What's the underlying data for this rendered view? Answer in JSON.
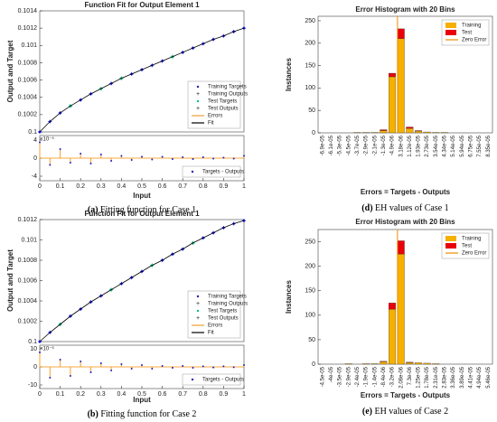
{
  "chart_data": [
    {
      "type": "line",
      "title": "Function Fit for Output Element 1",
      "ylabel": "Output and Target",
      "xlabel": "Input",
      "caption_label": "(a)",
      "caption": "Fitting function for Case 1",
      "x": [
        0,
        0.05,
        0.1,
        0.15,
        0.2,
        0.25,
        0.3,
        0.35,
        0.4,
        0.45,
        0.5,
        0.55,
        0.6,
        0.65,
        0.7,
        0.75,
        0.8,
        0.85,
        0.9,
        0.95,
        1
      ],
      "xlim": [
        0,
        1
      ],
      "xticks": [
        0,
        0.1,
        0.2,
        0.3,
        0.4,
        0.5,
        0.6,
        0.7,
        0.8,
        0.9,
        1
      ],
      "ylim": [
        0.1,
        0.1014
      ],
      "yticks": [
        0.1,
        0.1002,
        0.1004,
        0.1006,
        0.1008,
        0.101,
        0.1012,
        0.1014
      ],
      "legend": "lower right",
      "series": [
        {
          "name": "Training Targets",
          "color": "#1f1fb4",
          "marker": "dot",
          "values": [
            0.1,
            0.10012,
            0.10022,
            0.1003,
            0.10037,
            0.10044,
            0.1005,
            0.10056,
            0.10062,
            0.10067,
            0.10072,
            0.10077,
            0.10082,
            0.10087,
            0.10092,
            0.10097,
            0.10102,
            0.10107,
            0.10111,
            0.10116,
            0.1012
          ]
        },
        {
          "name": "Training Outputs",
          "color": "#0000ff",
          "marker": "plus",
          "values": [
            0.1,
            0.10012,
            0.10022,
            0.1003,
            0.10037,
            0.10044,
            0.1005,
            0.10056,
            0.10062,
            0.10067,
            0.10072,
            0.10077,
            0.10082,
            0.10087,
            0.10092,
            0.10097,
            0.10102,
            0.10107,
            0.10111,
            0.10116,
            0.1012
          ]
        },
        {
          "name": "Test Targets",
          "color": "#00c080",
          "marker": "dot",
          "values": [
            null,
            null,
            null,
            0.1003,
            null,
            null,
            0.1005,
            null,
            0.10062,
            null,
            null,
            null,
            null,
            0.10087,
            null,
            null,
            null,
            null,
            null,
            null,
            null
          ]
        },
        {
          "name": "Test Outputs",
          "color": "#00d070",
          "marker": "plus",
          "values": [
            null,
            null,
            null,
            0.1003,
            null,
            null,
            0.1005,
            null,
            0.10062,
            null,
            null,
            null,
            null,
            0.10087,
            null,
            null,
            null,
            null,
            null,
            null,
            null
          ]
        },
        {
          "name": "Errors",
          "color": "#f0a030"
        },
        {
          "name": "Fit",
          "color": "#000000",
          "marker": "line",
          "values": [
            0.1,
            0.10012,
            0.10022,
            0.1003,
            0.10037,
            0.10044,
            0.1005,
            0.10056,
            0.10062,
            0.10067,
            0.10072,
            0.10077,
            0.10082,
            0.10087,
            0.10092,
            0.10097,
            0.10102,
            0.10107,
            0.10111,
            0.10116,
            0.1012
          ]
        }
      ],
      "error_panel": {
        "ylabel": "Error",
        "exponent_label": "×10⁻⁵",
        "legend": "Targets - Outputs",
        "color": "#f0a030",
        "ylim": [
          -5,
          5
        ],
        "yticks": [
          -4,
          0,
          4
        ],
        "values": [
          3.5,
          -1.5,
          2,
          -1,
          1,
          -1.2,
          0.8,
          -0.6,
          0.5,
          -0.4,
          0.3,
          -0.3,
          0.3,
          -0.2,
          0.2,
          -0.2,
          0.2,
          -0.1,
          0.1,
          -0.1,
          0.5
        ]
      }
    },
    {
      "type": "bar",
      "stacked": true,
      "title": "Error Histogram with 20 Bins",
      "ylabel": "Instances",
      "xlabel": "Errors = Targets - Outputs",
      "caption_label": "(d)",
      "caption": "EH values of Case 1",
      "categories": [
        "-6.9e-05",
        "-6.1e-05",
        "-5.3e-05",
        "-4.5e-05",
        "-3.7e-05",
        "-2.9e-05",
        "-2.1e-05",
        "-1.3e-05",
        "-4.9e-06",
        "3.18e-06",
        "1.12e-05",
        "1.93e-05",
        "2.73e-05",
        "3.54e-05",
        "4.34e-05",
        "5.14e-05",
        "5.94e-05",
        "6.75e-05",
        "7.55e-05",
        "8.35e-05"
      ],
      "ylim": [
        0,
        260
      ],
      "yticks": [
        0,
        50,
        100,
        150,
        200,
        250
      ],
      "legend": "upper right",
      "series": [
        {
          "name": "Training",
          "color": "#f5b000",
          "values": [
            0,
            0,
            0,
            0,
            1,
            1,
            1,
            5,
            125,
            210,
            10,
            4,
            2,
            1,
            1,
            0,
            0,
            0,
            0,
            0
          ]
        },
        {
          "name": "Test",
          "color": "#e8000b",
          "values": [
            0,
            0,
            0,
            0,
            0,
            0,
            0,
            2,
            8,
            22,
            3,
            1,
            0,
            0,
            0,
            0,
            0,
            0,
            0,
            0
          ]
        },
        {
          "name": "Zero Error",
          "color": "#f08c00"
        }
      ]
    },
    {
      "type": "line",
      "title": "Function Fit for Output Element 1",
      "ylabel": "Output and Target",
      "xlabel": "Input",
      "caption_label": "(b)",
      "caption": "Fitting function for Case 2",
      "x": [
        0,
        0.05,
        0.1,
        0.15,
        0.2,
        0.25,
        0.3,
        0.35,
        0.4,
        0.45,
        0.5,
        0.55,
        0.6,
        0.65,
        0.7,
        0.75,
        0.8,
        0.85,
        0.9,
        0.95,
        1
      ],
      "xlim": [
        0,
        1
      ],
      "xticks": [
        0,
        0.1,
        0.2,
        0.3,
        0.4,
        0.5,
        0.6,
        0.7,
        0.8,
        0.9,
        1
      ],
      "ylim": [
        0.1,
        0.1012
      ],
      "yticks": [
        0.1,
        0.1002,
        0.1004,
        0.1006,
        0.1008,
        0.101,
        0.1012
      ],
      "legend": "lower right",
      "series": [
        {
          "name": "Training Targets",
          "color": "#1f1fb4",
          "marker": "dot",
          "values": [
            0.1,
            0.10009,
            0.10017,
            0.10025,
            0.10032,
            0.10039,
            0.10045,
            0.10051,
            0.10057,
            0.10063,
            0.10069,
            0.10075,
            0.1008,
            0.10086,
            0.10091,
            0.10097,
            0.10102,
            0.10107,
            0.10112,
            0.10116,
            0.10119
          ]
        },
        {
          "name": "Training Outputs",
          "color": "#0000ff",
          "marker": "plus",
          "values": [
            0.1,
            0.10009,
            0.10017,
            0.10025,
            0.10032,
            0.10039,
            0.10045,
            0.10051,
            0.10057,
            0.10063,
            0.10069,
            0.10075,
            0.1008,
            0.10086,
            0.10091,
            0.10097,
            0.10102,
            0.10107,
            0.10112,
            0.10116,
            0.10119
          ]
        },
        {
          "name": "Test Targets",
          "color": "#00c080",
          "marker": "dot",
          "values": [
            null,
            null,
            0.10017,
            null,
            null,
            null,
            null,
            0.10051,
            null,
            null,
            null,
            0.10075,
            null,
            null,
            null,
            0.10097,
            null,
            null,
            null,
            null,
            null
          ]
        },
        {
          "name": "Test Outputs",
          "color": "#00d070",
          "marker": "plus",
          "values": [
            null,
            null,
            0.10017,
            null,
            null,
            null,
            null,
            0.10051,
            null,
            null,
            null,
            0.10075,
            null,
            null,
            null,
            0.10097,
            null,
            null,
            null,
            null,
            null
          ]
        },
        {
          "name": "Errors",
          "color": "#f0a030"
        },
        {
          "name": "Fit",
          "color": "#000000",
          "marker": "line",
          "values": [
            0.1,
            0.10009,
            0.10017,
            0.10025,
            0.10032,
            0.10039,
            0.10045,
            0.10051,
            0.10057,
            0.10063,
            0.10069,
            0.10075,
            0.1008,
            0.10086,
            0.10091,
            0.10097,
            0.10102,
            0.10107,
            0.10112,
            0.10116,
            0.10119
          ]
        }
      ],
      "error_panel": {
        "ylabel": "Error",
        "exponent_label": "×10⁻⁶",
        "legend": "Targets - Outputs",
        "color": "#f0a030",
        "ylim": [
          -12,
          12
        ],
        "yticks": [
          -10,
          0,
          10
        ],
        "values": [
          8,
          -6,
          4,
          -5,
          3,
          -3,
          2,
          -2,
          1.5,
          -1,
          1,
          -1,
          0.5,
          -0.5,
          0.5,
          -0.5,
          0.3,
          -0.3,
          0.3,
          -0.2,
          1
        ]
      }
    },
    {
      "type": "bar",
      "stacked": true,
      "title": "Error Histogram with 20 Bins",
      "ylabel": "Instances",
      "xlabel": "Errors = Targets - Outputs",
      "caption_label": "(e)",
      "caption": "EH values of Case 2",
      "categories": [
        "-4.5e-05",
        "-4e-05",
        "-3.5e-05",
        "-2.9e-05",
        "-2.4e-05",
        "-1.9e-05",
        "-1.4e-05",
        "-8.4e-06",
        "-3.2e-06",
        "2.08e-06",
        "7.3e-06",
        "1.25e-05",
        "1.78e-05",
        "2.31e-05",
        "2.83e-05",
        "3.36e-05",
        "3.89e-05",
        "4.41e-05",
        "4.94e-05",
        "5.46e-05"
      ],
      "ylim": [
        0,
        275
      ],
      "yticks": [
        0,
        50,
        100,
        150,
        200,
        250
      ],
      "legend": "upper right",
      "series": [
        {
          "name": "Training",
          "color": "#f5b000",
          "values": [
            0,
            0,
            0,
            1,
            0,
            1,
            1,
            5,
            112,
            225,
            3,
            3,
            2,
            1,
            0,
            0,
            0,
            0,
            0,
            0
          ]
        },
        {
          "name": "Test",
          "color": "#e8000b",
          "values": [
            0,
            0,
            0,
            0,
            0,
            0,
            0,
            1,
            13,
            27,
            1,
            0,
            0,
            0,
            0,
            0,
            0,
            0,
            0,
            0
          ]
        },
        {
          "name": "Zero Error",
          "color": "#f08c00"
        }
      ]
    }
  ]
}
